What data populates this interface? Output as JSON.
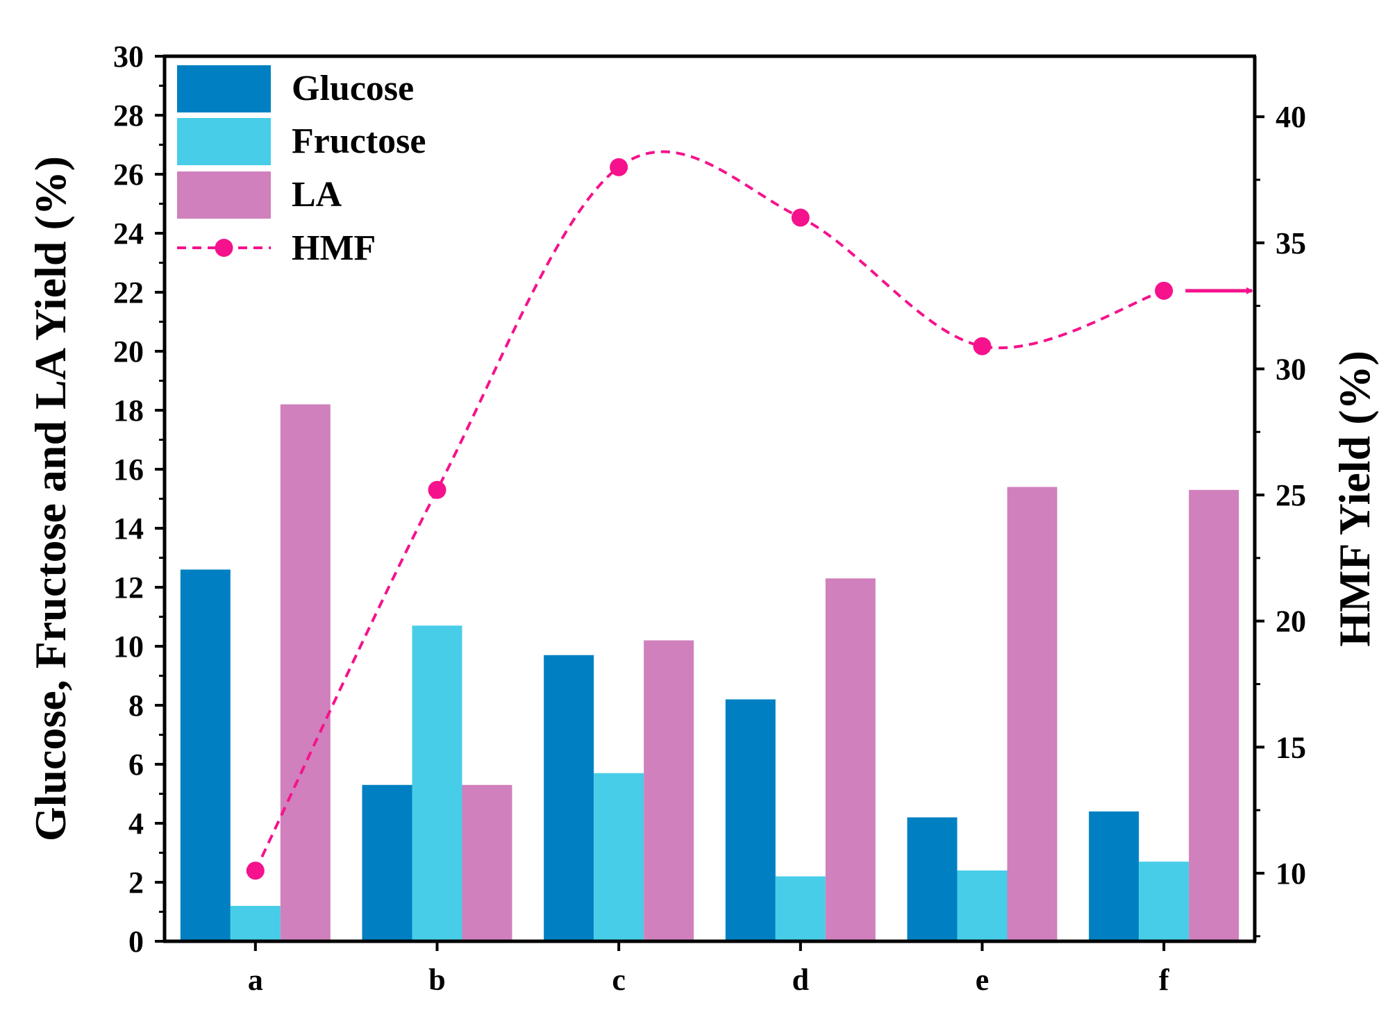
{
  "chart_data": {
    "type": "bar",
    "categories": [
      "a",
      "b",
      "c",
      "d",
      "e",
      "f"
    ],
    "series": [
      {
        "name": "Glucose",
        "type": "bar",
        "axis": "left",
        "color": "#0080C2",
        "values": [
          12.6,
          5.3,
          9.7,
          8.2,
          4.2,
          4.4
        ]
      },
      {
        "name": "Fructose",
        "type": "bar",
        "axis": "left",
        "color": "#48CDE8",
        "values": [
          1.2,
          10.7,
          5.7,
          2.2,
          2.4,
          2.7
        ]
      },
      {
        "name": "LA",
        "type": "bar",
        "axis": "left",
        "color": "#D080BC",
        "values": [
          18.2,
          5.3,
          10.2,
          12.3,
          15.4,
          15.3
        ]
      },
      {
        "name": "HMF",
        "type": "line",
        "axis": "right",
        "style": "dashed-smooth",
        "marker": "circle",
        "color": "#F5128C",
        "values": [
          10.1,
          25.2,
          38.0,
          36.0,
          30.9,
          33.1
        ]
      }
    ],
    "ylabel": "Glucose, Fructose and LA Yield (%)",
    "ylim": [
      0,
      30
    ],
    "yticks": [
      "0",
      "2",
      "4",
      "6",
      "8",
      "10",
      "12",
      "14",
      "16",
      "18",
      "20",
      "22",
      "24",
      "26",
      "28",
      "30"
    ],
    "y2label": "HMF Yield (%)",
    "y2lim": [
      7.3,
      42.4
    ],
    "y2ticks": [
      "10",
      "15",
      "20",
      "25",
      "30",
      "35",
      "40"
    ],
    "xlabel": "",
    "legend": "top-left",
    "grid": false,
    "annotation": "arrow pointing from HMF series to right axis"
  }
}
